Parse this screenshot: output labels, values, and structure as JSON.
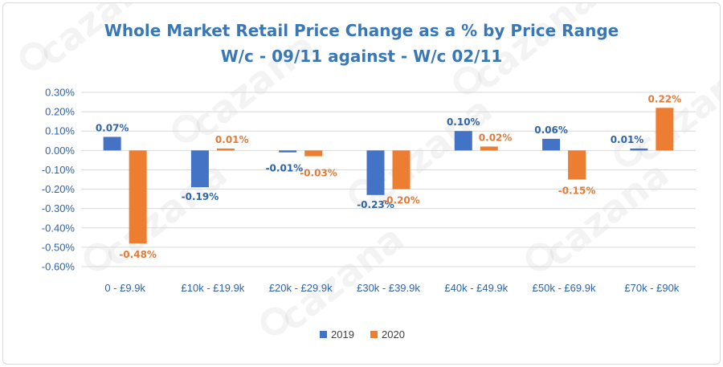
{
  "chart_data": {
    "type": "bar",
    "title": "Whole Market Retail Price Change as a % by Price Range",
    "subtitle": "W/c - 09/11 against - W/c 02/11",
    "categories": [
      "0 - £9.9k",
      "£10k - £19.9k",
      "£20k - £29.9k",
      "£30k - £39.9k",
      "£40k - £49.9k",
      "£50k - £69.9k",
      "£70k - £90k"
    ],
    "series": [
      {
        "name": "2019",
        "color": "#4472c4",
        "label_color": "#2f64a8",
        "values": [
          0.07,
          -0.19,
          -0.01,
          -0.23,
          0.1,
          0.06,
          0.01
        ],
        "labels": [
          "0.07%",
          "-0.19%",
          "-0.01%",
          "-0.23%",
          "0.10%",
          "0.06%",
          "0.01%"
        ]
      },
      {
        "name": "2020",
        "color": "#ed7d31",
        "label_color": "#e07b39",
        "values": [
          -0.48,
          0.01,
          -0.03,
          -0.2,
          0.02,
          -0.15,
          0.22
        ],
        "labels": [
          "-0.48%",
          "0.01%",
          "-0.03%",
          "-0.20%",
          "0.02%",
          "-0.15%",
          "0.22%"
        ]
      }
    ],
    "ylim": [
      -0.6,
      0.3
    ],
    "yticks": [
      "0.30%",
      "0.20%",
      "0.10%",
      "0.00%",
      "-0.10%",
      "-0.20%",
      "-0.30%",
      "-0.40%",
      "-0.50%",
      "-0.60%"
    ],
    "ytick_values": [
      0.3,
      0.2,
      0.1,
      0.0,
      -0.1,
      -0.2,
      -0.3,
      -0.4,
      -0.5,
      -0.6
    ],
    "grid": true,
    "legend_position": "bottom",
    "xlabel": "",
    "ylabel": ""
  },
  "watermark": {
    "text": "cazana",
    "icon": "cazana-logo-icon"
  }
}
